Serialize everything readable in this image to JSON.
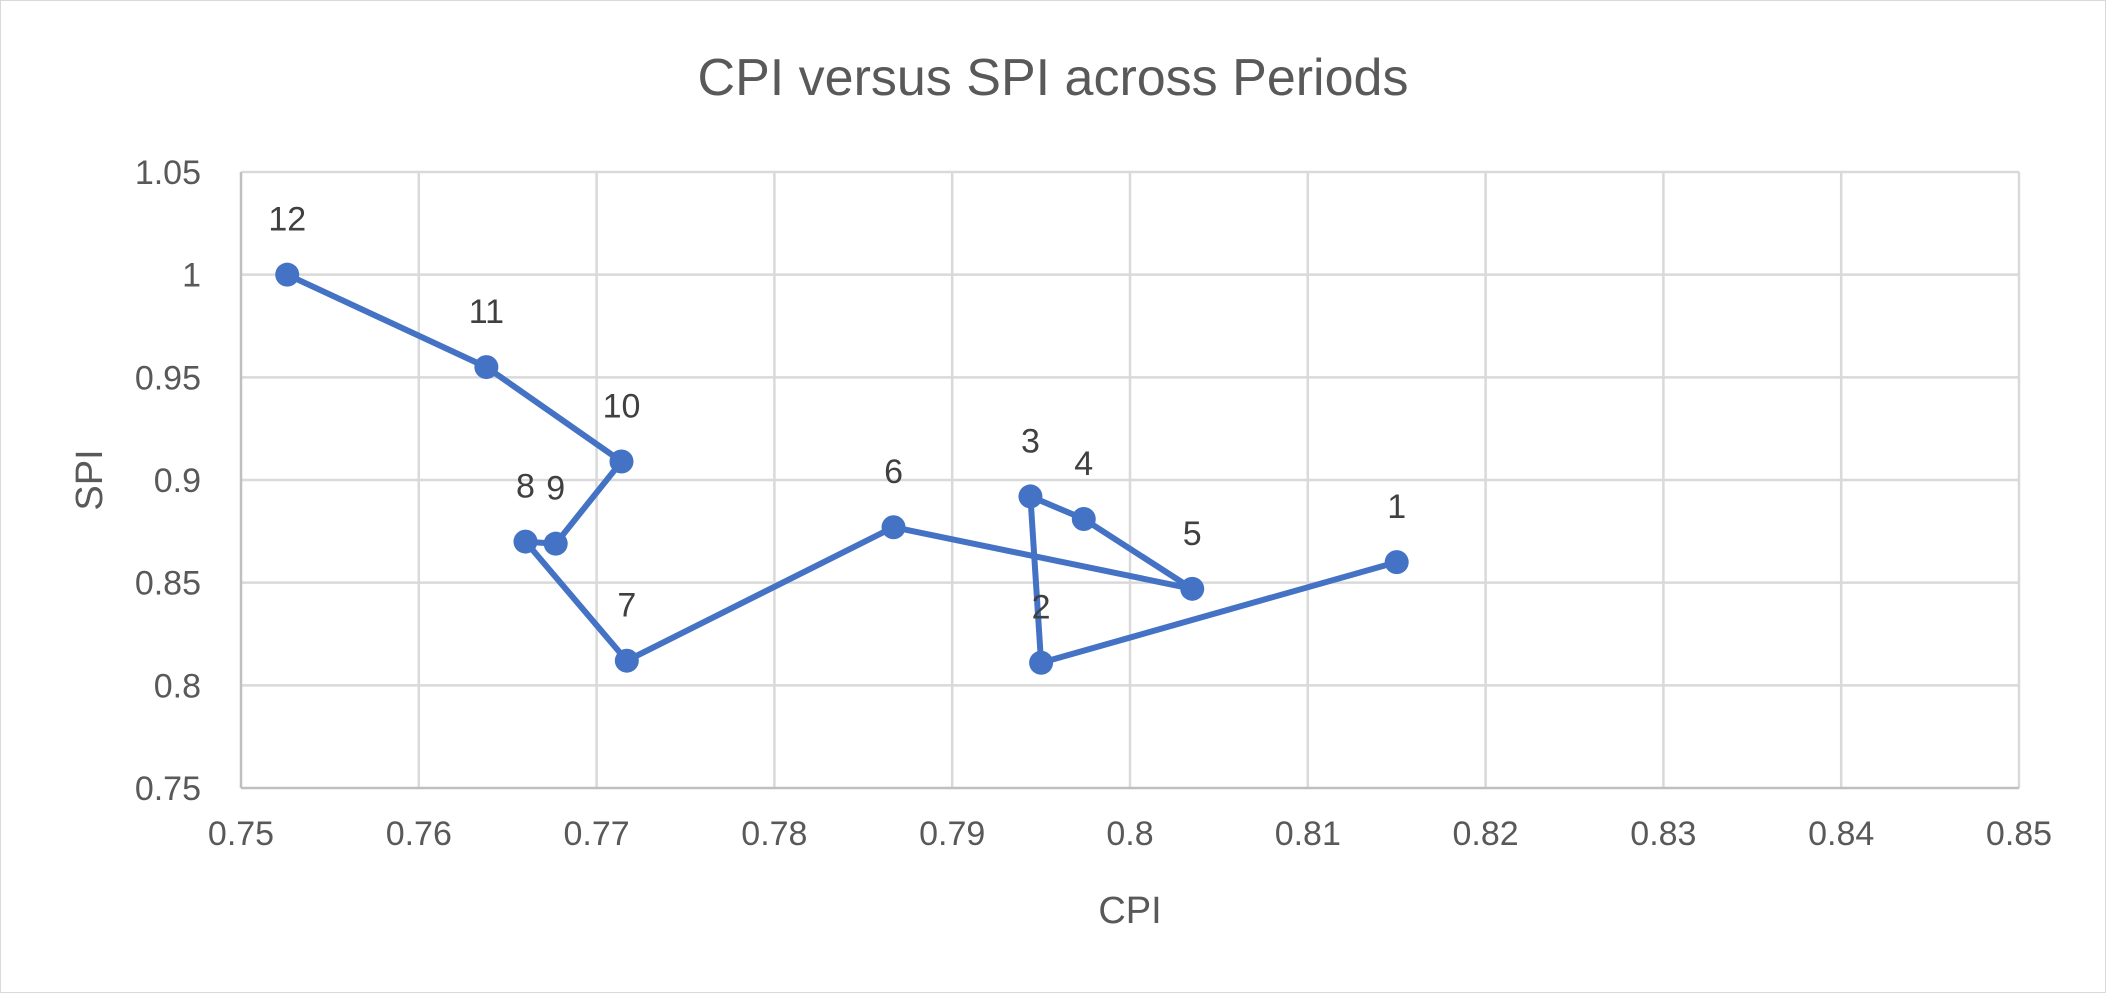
{
  "chart_data": {
    "type": "scatter",
    "title": "CPI versus SPI across Periods",
    "xlabel": "CPI",
    "ylabel": "SPI",
    "xlim": [
      0.75,
      0.85
    ],
    "ylim": [
      0.75,
      1.05
    ],
    "x_ticks": [
      "0.75",
      "0.76",
      "0.77",
      "0.78",
      "0.79",
      "0.8",
      "0.81",
      "0.82",
      "0.83",
      "0.84",
      "0.85"
    ],
    "y_ticks": [
      "0.75",
      "0.8",
      "0.85",
      "0.9",
      "0.95",
      "1",
      "1.05"
    ],
    "grid": true,
    "legend": "none",
    "connected": true,
    "series_color": "#4472C4",
    "series": [
      {
        "points": [
          {
            "label": "1",
            "x": 0.815,
            "y": 0.86
          },
          {
            "label": "2",
            "x": 0.795,
            "y": 0.811
          },
          {
            "label": "3",
            "x": 0.7944,
            "y": 0.892
          },
          {
            "label": "4",
            "x": 0.7974,
            "y": 0.881
          },
          {
            "label": "5",
            "x": 0.8035,
            "y": 0.847
          },
          {
            "label": "6",
            "x": 0.7867,
            "y": 0.877
          },
          {
            "label": "7",
            "x": 0.7717,
            "y": 0.812
          },
          {
            "label": "8",
            "x": 0.766,
            "y": 0.87
          },
          {
            "label": "9",
            "x": 0.7677,
            "y": 0.869
          },
          {
            "label": "10",
            "x": 0.7714,
            "y": 0.909
          },
          {
            "label": "11",
            "x": 0.7638,
            "y": 0.955
          },
          {
            "label": "12",
            "x": 0.7526,
            "y": 1.0
          }
        ]
      }
    ]
  }
}
